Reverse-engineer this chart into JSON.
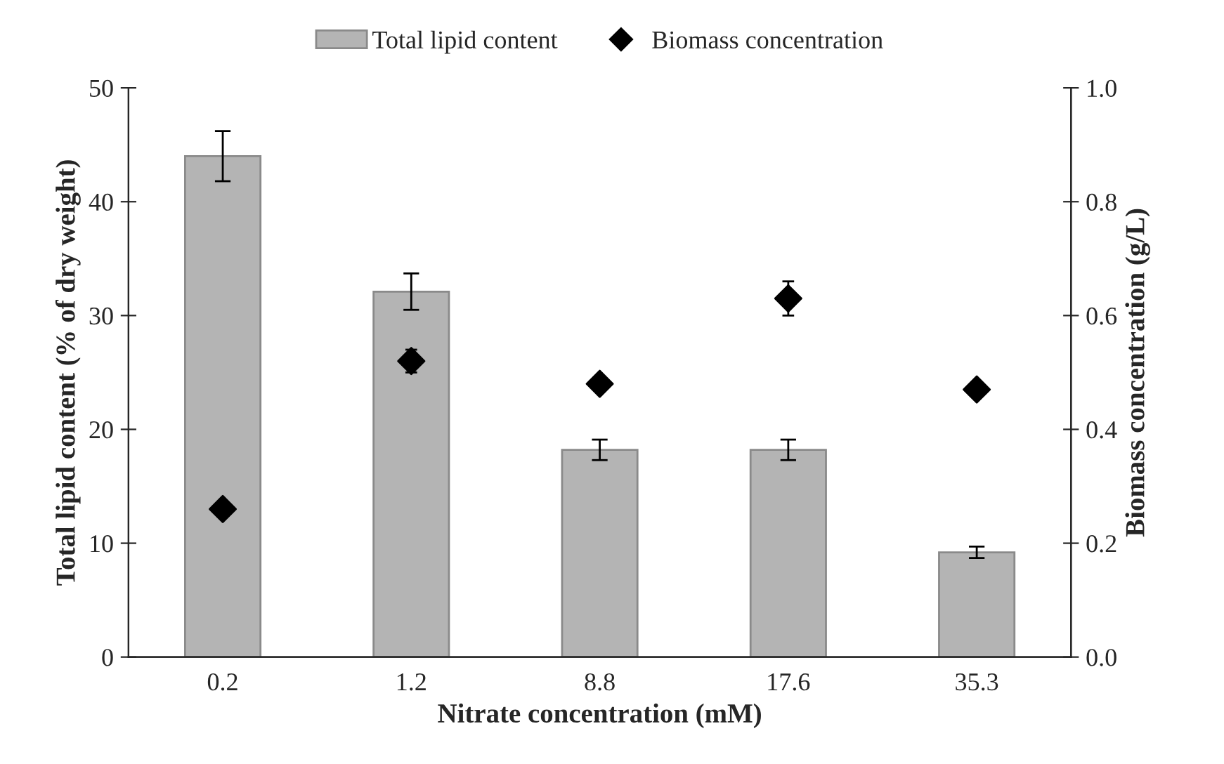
{
  "chart_data": {
    "type": "bar",
    "xlabel": "Nitrate concentration (mM)",
    "ylabel": "Total lipid content (% of dry weight)",
    "y2label": "Biomass concentration (g/L)",
    "categories": [
      "0.2",
      "1.2",
      "8.8",
      "17.6",
      "35.3"
    ],
    "series": [
      {
        "name": "Total lipid content",
        "color": "#b4b4b4",
        "values": [
          44.0,
          32.1,
          18.2,
          18.2,
          9.2
        ],
        "errors": [
          2.2,
          1.6,
          0.9,
          0.9,
          0.5
        ]
      },
      {
        "name": "Biomass concentration",
        "type": "scatter",
        "axis": "y2",
        "color": "#000000",
        "marker": "diamond",
        "values": [
          0.26,
          0.52,
          0.48,
          0.63,
          0.47
        ],
        "errors": [
          0.01,
          0.02,
          0.01,
          0.03,
          0.01
        ]
      }
    ],
    "ylim": [
      0,
      50
    ],
    "yticks": [
      0,
      10,
      20,
      30,
      40,
      50
    ],
    "y2lim": [
      0,
      1.0
    ],
    "y2ticks": [
      {
        "value": 0,
        "label": "0.0"
      },
      {
        "value": 0.2,
        "label": "0.2"
      },
      {
        "value": 0.4,
        "label": "0.4"
      },
      {
        "value": 0.6,
        "label": "0.6"
      },
      {
        "value": 0.8,
        "label": "0.8"
      },
      {
        "value": 1.0,
        "label": "1.0"
      }
    ],
    "legend": "top",
    "grid": false
  }
}
